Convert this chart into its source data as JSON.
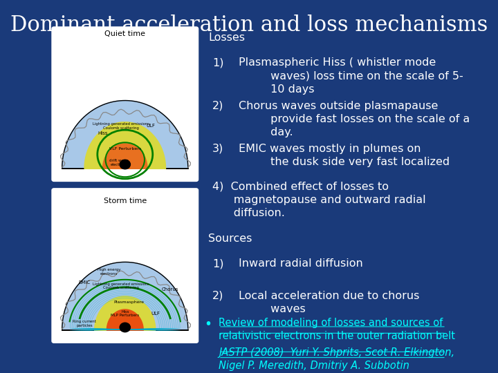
{
  "title": "Dominant acceleration and loss mechanisms",
  "title_color": "#FFFFFF",
  "title_fontsize": 22,
  "background_color": "#1a3a7a",
  "text_color": "#FFFFFF",
  "link_color": "#00FFFF",
  "losses_header": "Losses",
  "sources_header": "Sources",
  "quiet_time_label": "Quiet time",
  "storm_time_label": "Storm time",
  "loss1_num": "1)",
  "loss1_text": "Plasmaspheric Hiss ( whistler mode\n         waves) loss time on the scale of 5-\n         10 days",
  "loss2_num": "2)",
  "loss2_text": "Chorus waves outside plasmapause\n         provide fast losses on the scale of a\n         day.",
  "loss3_num": "3)",
  "loss3_text": "EMIC waves mostly in plumes on\n         the dusk side very fast localized",
  "loss4_text": "4)  Combined effect of losses to\n      magnetopause and outward radial\n      diffusion.",
  "src1_num": "1)",
  "src1_text": "Inward radial diffusion",
  "src2_num": "2)",
  "src2_text": "Local acceleration due to chorus\n         waves",
  "ref_line1": "Review of modeling of losses and sources of\nrelativistic electrons in the outer radiation belt",
  "ref_line2": "JASTP (2008)  Yuri Y. Shprits, Scot R. Elkington,\nNigel P. Meredith, Dmitriy A. Subbotin",
  "bullet": "•"
}
